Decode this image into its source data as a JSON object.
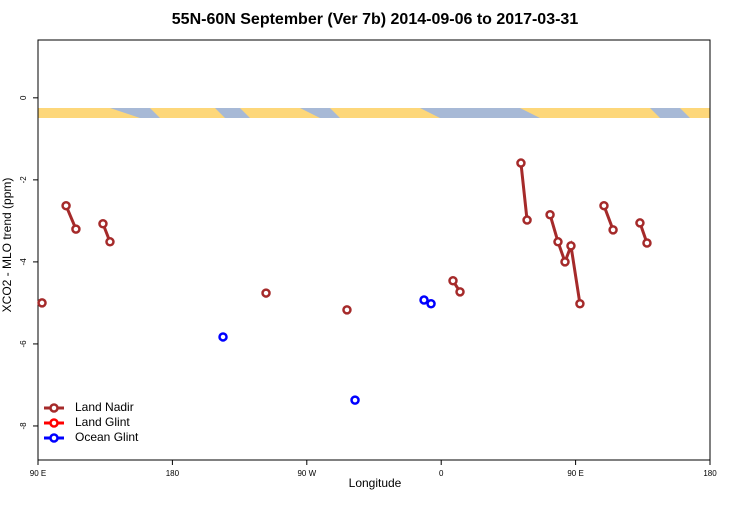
{
  "chart_data": {
    "type": "line",
    "title": "55N-60N September (Ver 7b)   2014-09-06 to 2017-03-31",
    "x_label": "Longitude",
    "y_label": "XCO2 - MLO trend (ppm)",
    "xlim": [
      90,
      540
    ],
    "xticks": [
      {
        "value": 90,
        "label": "90 E"
      },
      {
        "value": 180,
        "label": "180"
      },
      {
        "value": 270,
        "label": "90 W"
      },
      {
        "value": 360,
        "label": "0"
      },
      {
        "value": 450,
        "label": "90 E"
      },
      {
        "value": 540,
        "label": "180"
      }
    ],
    "ylim": [
      -8.83,
      1.41
    ],
    "yticks": [
      0,
      -2,
      -4,
      -6,
      -8
    ],
    "legend": "bottom-left",
    "series": [
      {
        "name": "Land Nadir",
        "color": "#a52a2a",
        "x": [
          92.7,
          null,
          108.8,
          115.4,
          null,
          133.5,
          138.2,
          null,
          242.7,
          null,
          296.9,
          null,
          367.9,
          372.6,
          null,
          413.4,
          417.5,
          null,
          432.9,
          438.2,
          442.9,
          446.9,
          452.9,
          null,
          469.0,
          475.1,
          null,
          493.1,
          497.8
        ],
        "values": [
          -5.0,
          null,
          -2.63,
          -3.2,
          null,
          -3.07,
          -3.51,
          null,
          -4.76,
          null,
          -5.17,
          null,
          -4.46,
          -4.73,
          null,
          -1.59,
          -2.98,
          null,
          -2.85,
          -3.51,
          -4.0,
          -3.61,
          -5.02,
          null,
          -2.63,
          -3.22,
          null,
          -3.05,
          -3.54
        ]
      },
      {
        "name": "Land Glint",
        "color": "#ff0000",
        "x": [],
        "values": []
      },
      {
        "name": "Ocean Glint",
        "color": "#0000ff",
        "x": [
          213.9,
          null,
          302.3,
          null,
          348.5,
          353.2
        ],
        "values": [
          -5.83,
          null,
          -7.37,
          null,
          -4.93,
          -5.02
        ]
      }
    ]
  }
}
